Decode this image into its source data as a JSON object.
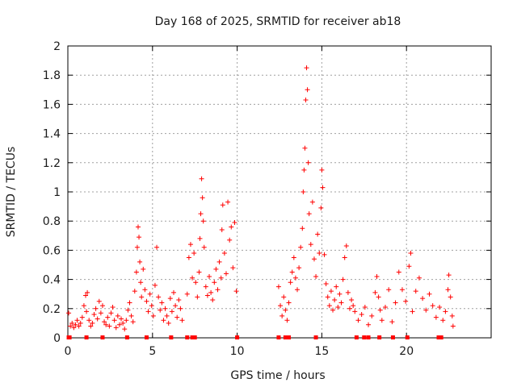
{
  "chart_data": {
    "type": "scatter",
    "title": "Day 168 of 2025, SRMTID for receiver ab18",
    "xlabel": "GPS time / hours",
    "ylabel": "SRMTID / TECUs",
    "xlim": [
      0,
      25
    ],
    "ylim": [
      0,
      2
    ],
    "xticks": [
      0,
      5,
      10,
      15,
      20
    ],
    "yticks": [
      0,
      0.2,
      0.4,
      0.6,
      0.8,
      1,
      1.2,
      1.4,
      1.6,
      1.8,
      2
    ],
    "grid": true,
    "marker": "plus",
    "color": "#ff0000",
    "series": [
      {
        "name": "SRMTID",
        "points": [
          [
            0.05,
            0.17
          ],
          [
            0.15,
            0.08
          ],
          [
            0.25,
            0.1
          ],
          [
            0.35,
            0.07
          ],
          [
            0.45,
            0.09
          ],
          [
            0.55,
            0.12
          ],
          [
            0.65,
            0.08
          ],
          [
            0.75,
            0.1
          ],
          [
            0.85,
            0.14
          ],
          [
            0.95,
            0.22
          ],
          [
            1.05,
            0.29
          ],
          [
            1.1,
            0.18
          ],
          [
            1.15,
            0.31
          ],
          [
            1.25,
            0.12
          ],
          [
            1.35,
            0.08
          ],
          [
            1.45,
            0.1
          ],
          [
            1.55,
            0.16
          ],
          [
            1.65,
            0.2
          ],
          [
            1.75,
            0.13
          ],
          [
            1.85,
            0.25
          ],
          [
            1.95,
            0.17
          ],
          [
            2.05,
            0.22
          ],
          [
            2.15,
            0.11
          ],
          [
            2.25,
            0.09
          ],
          [
            2.35,
            0.14
          ],
          [
            2.45,
            0.08
          ],
          [
            2.55,
            0.17
          ],
          [
            2.65,
            0.21
          ],
          [
            2.75,
            0.12
          ],
          [
            2.85,
            0.07
          ],
          [
            2.95,
            0.15
          ],
          [
            3.05,
            0.09
          ],
          [
            3.15,
            0.13
          ],
          [
            3.25,
            0.1
          ],
          [
            3.35,
            0.06
          ],
          [
            3.45,
            0.12
          ],
          [
            3.55,
            0.19
          ],
          [
            3.65,
            0.24
          ],
          [
            3.75,
            0.15
          ],
          [
            3.85,
            0.11
          ],
          [
            3.95,
            0.32
          ],
          [
            4.05,
            0.45
          ],
          [
            4.1,
            0.62
          ],
          [
            4.15,
            0.76
          ],
          [
            4.2,
            0.69
          ],
          [
            4.25,
            0.52
          ],
          [
            4.3,
            0.38
          ],
          [
            4.35,
            0.28
          ],
          [
            4.45,
            0.47
          ],
          [
            4.55,
            0.33
          ],
          [
            4.65,
            0.25
          ],
          [
            4.75,
            0.18
          ],
          [
            4.85,
            0.3
          ],
          [
            4.95,
            0.22
          ],
          [
            5.05,
            0.15
          ],
          [
            5.15,
            0.36
          ],
          [
            5.25,
            0.62
          ],
          [
            5.35,
            0.28
          ],
          [
            5.45,
            0.19
          ],
          [
            5.55,
            0.24
          ],
          [
            5.65,
            0.12
          ],
          [
            5.75,
            0.2
          ],
          [
            5.85,
            0.15
          ],
          [
            5.95,
            0.1
          ],
          [
            6.05,
            0.27
          ],
          [
            6.15,
            0.18
          ],
          [
            6.25,
            0.31
          ],
          [
            6.35,
            0.22
          ],
          [
            6.45,
            0.14
          ],
          [
            6.55,
            0.26
          ],
          [
            6.65,
            0.2
          ],
          [
            6.75,
            0.12
          ],
          [
            7.05,
            0.3
          ],
          [
            7.15,
            0.55
          ],
          [
            7.25,
            0.64
          ],
          [
            7.35,
            0.41
          ],
          [
            7.45,
            0.58
          ],
          [
            7.55,
            0.38
          ],
          [
            7.65,
            0.28
          ],
          [
            7.75,
            0.45
          ],
          [
            7.8,
            0.68
          ],
          [
            7.85,
            0.85
          ],
          [
            7.9,
            1.09
          ],
          [
            7.95,
            0.96
          ],
          [
            8.0,
            0.8
          ],
          [
            8.05,
            0.62
          ],
          [
            8.15,
            0.35
          ],
          [
            8.25,
            0.29
          ],
          [
            8.35,
            0.42
          ],
          [
            8.45,
            0.31
          ],
          [
            8.55,
            0.26
          ],
          [
            8.65,
            0.38
          ],
          [
            8.75,
            0.47
          ],
          [
            8.85,
            0.33
          ],
          [
            8.95,
            0.52
          ],
          [
            9.05,
            0.41
          ],
          [
            9.1,
            0.74
          ],
          [
            9.15,
            0.91
          ],
          [
            9.25,
            0.58
          ],
          [
            9.35,
            0.44
          ],
          [
            9.45,
            0.93
          ],
          [
            9.55,
            0.67
          ],
          [
            9.65,
            0.76
          ],
          [
            9.75,
            0.48
          ],
          [
            9.85,
            0.79
          ],
          [
            9.95,
            0.32
          ],
          [
            12.45,
            0.35
          ],
          [
            12.55,
            0.22
          ],
          [
            12.65,
            0.15
          ],
          [
            12.75,
            0.28
          ],
          [
            12.85,
            0.19
          ],
          [
            12.95,
            0.12
          ],
          [
            13.05,
            0.24
          ],
          [
            13.15,
            0.38
          ],
          [
            13.25,
            0.45
          ],
          [
            13.35,
            0.55
          ],
          [
            13.45,
            0.41
          ],
          [
            13.55,
            0.33
          ],
          [
            13.65,
            0.48
          ],
          [
            13.75,
            0.62
          ],
          [
            13.85,
            0.75
          ],
          [
            13.9,
            1.0
          ],
          [
            13.95,
            1.15
          ],
          [
            14.0,
            1.3
          ],
          [
            14.05,
            1.63
          ],
          [
            14.1,
            1.85
          ],
          [
            14.15,
            1.7
          ],
          [
            14.2,
            1.2
          ],
          [
            14.25,
            0.85
          ],
          [
            14.35,
            0.64
          ],
          [
            14.45,
            0.93
          ],
          [
            14.55,
            0.54
          ],
          [
            14.65,
            0.42
          ],
          [
            14.75,
            0.71
          ],
          [
            14.85,
            0.58
          ],
          [
            14.95,
            0.89
          ],
          [
            15.0,
            1.15
          ],
          [
            15.05,
            1.03
          ],
          [
            15.15,
            0.57
          ],
          [
            15.25,
            0.37
          ],
          [
            15.35,
            0.28
          ],
          [
            15.45,
            0.22
          ],
          [
            15.55,
            0.32
          ],
          [
            15.65,
            0.19
          ],
          [
            15.75,
            0.26
          ],
          [
            15.85,
            0.35
          ],
          [
            15.95,
            0.21
          ],
          [
            16.05,
            0.3
          ],
          [
            16.15,
            0.24
          ],
          [
            16.25,
            0.4
          ],
          [
            16.35,
            0.55
          ],
          [
            16.45,
            0.63
          ],
          [
            16.55,
            0.31
          ],
          [
            16.65,
            0.2
          ],
          [
            16.75,
            0.26
          ],
          [
            16.85,
            0.22
          ],
          [
            16.95,
            0.18
          ],
          [
            17.15,
            0.12
          ],
          [
            17.35,
            0.16
          ],
          [
            17.55,
            0.21
          ],
          [
            17.75,
            0.09
          ],
          [
            17.95,
            0.15
          ],
          [
            18.15,
            0.31
          ],
          [
            18.25,
            0.42
          ],
          [
            18.35,
            0.28
          ],
          [
            18.45,
            0.19
          ],
          [
            18.55,
            0.12
          ],
          [
            18.75,
            0.21
          ],
          [
            18.95,
            0.33
          ],
          [
            19.15,
            0.11
          ],
          [
            19.35,
            0.24
          ],
          [
            19.55,
            0.45
          ],
          [
            19.75,
            0.33
          ],
          [
            19.95,
            0.25
          ],
          [
            20.15,
            0.49
          ],
          [
            20.25,
            0.58
          ],
          [
            20.35,
            0.18
          ],
          [
            20.55,
            0.32
          ],
          [
            20.75,
            0.41
          ],
          [
            20.95,
            0.27
          ],
          [
            21.15,
            0.19
          ],
          [
            21.35,
            0.3
          ],
          [
            21.55,
            0.22
          ],
          [
            21.75,
            0.14
          ],
          [
            21.95,
            0.21
          ],
          [
            22.15,
            0.12
          ],
          [
            22.3,
            0.18
          ],
          [
            22.45,
            0.33
          ],
          [
            22.5,
            0.43
          ],
          [
            22.6,
            0.28
          ],
          [
            22.7,
            0.15
          ],
          [
            22.75,
            0.08
          ]
        ]
      }
    ],
    "zero_markers_x": [
      0.05,
      0.1,
      1.1,
      2.05,
      3.5,
      4.65,
      6.1,
      7.05,
      7.35,
      7.5,
      10.0,
      12.45,
      12.85,
      13.05,
      14.65,
      17.05,
      17.5,
      17.75,
      18.4,
      19.2,
      20.05,
      21.9,
      22.05
    ]
  }
}
